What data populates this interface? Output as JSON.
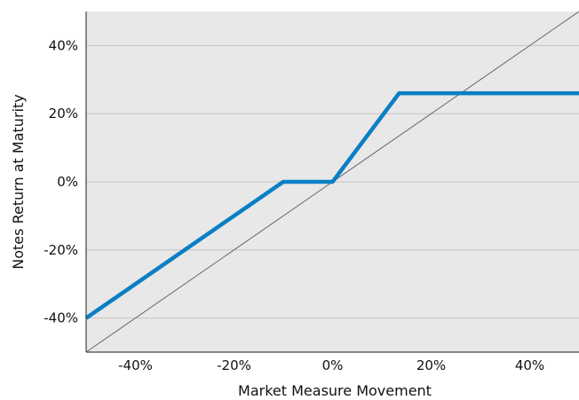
{
  "chart_data": {
    "type": "line",
    "title": "",
    "xlabel": "Market Measure Movement",
    "ylabel": "Notes Return at Maturity",
    "xlim": [
      -50,
      50
    ],
    "ylim": [
      -50,
      50
    ],
    "x_ticks": [
      -40,
      -20,
      0,
      20,
      40
    ],
    "x_tick_labels": [
      "-40%",
      "-20%",
      "0%",
      "20%",
      "40%"
    ],
    "y_ticks": [
      -40,
      -20,
      0,
      20,
      40
    ],
    "y_tick_labels": [
      "-40%",
      "-20%",
      "0%",
      "20%",
      "40%"
    ],
    "grid": "horizontal",
    "legend": "none",
    "series": [
      {
        "style": "thick-solid",
        "color": "#0a7fc4",
        "x": [
          -50,
          -10,
          0,
          13.5,
          50
        ],
        "y": [
          -40,
          0,
          0,
          26,
          26
        ]
      },
      {
        "style": "thin-solid",
        "color": "#666666",
        "x": [
          -50,
          50
        ],
        "y": [
          -50,
          50
        ]
      }
    ],
    "colors": {
      "plot_background": "#e8e8e8",
      "grid": "#c4c4c4",
      "axis": "#444444"
    }
  }
}
